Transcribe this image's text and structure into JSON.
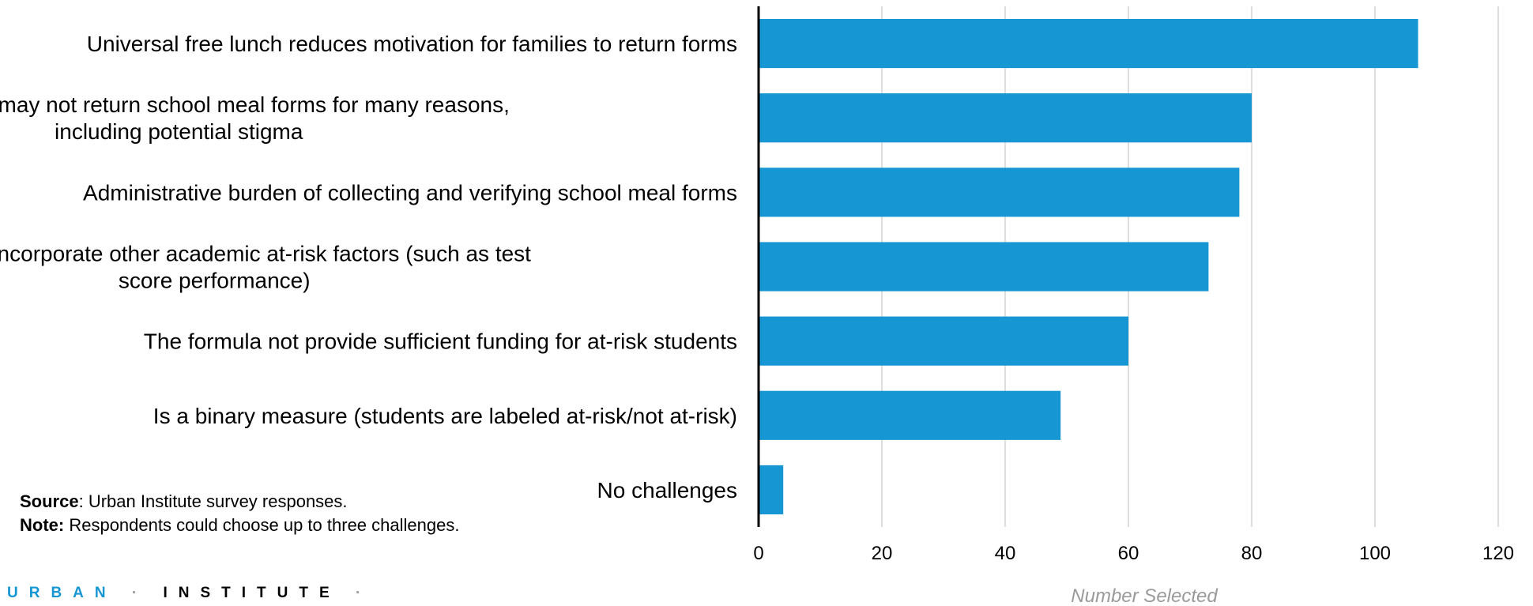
{
  "chart_data": {
    "type": "bar",
    "orientation": "horizontal",
    "categories": [
      [
        "Universal free lunch reduces motivation for families to return forms"
      ],
      [
        "Older students may not return school meal forms for many reasons,",
        "including potential stigma"
      ],
      [
        "Administrative burden of collecting and verifying school meal forms"
      ],
      [
        "Does not incorporate other academic at-risk factors (such as test",
        "score performance)"
      ],
      [
        "The formula not provide sufficient funding for at-risk students"
      ],
      [
        "Is a binary measure (students are labeled at-risk/not at-risk)"
      ],
      [
        "No challenges"
      ]
    ],
    "values": [
      107,
      80,
      78,
      73,
      60,
      49,
      4
    ],
    "xlabel": "Number Selected",
    "xlim": [
      0,
      120
    ],
    "xticks": [
      "0",
      "20",
      "40",
      "60",
      "80",
      "100",
      "120"
    ],
    "grid": true,
    "bar_color": "#1696d2"
  },
  "notes": {
    "source_label": "Source",
    "source_text": ": Urban Institute survey responses.",
    "note_label": "Note:",
    "note_text": " Respondents could choose up to three challenges."
  },
  "logo": {
    "part1": "URBAN",
    "separator": "·",
    "part2": "INSTITUTE",
    "end": "·",
    "primary_color": "#1696d2"
  }
}
